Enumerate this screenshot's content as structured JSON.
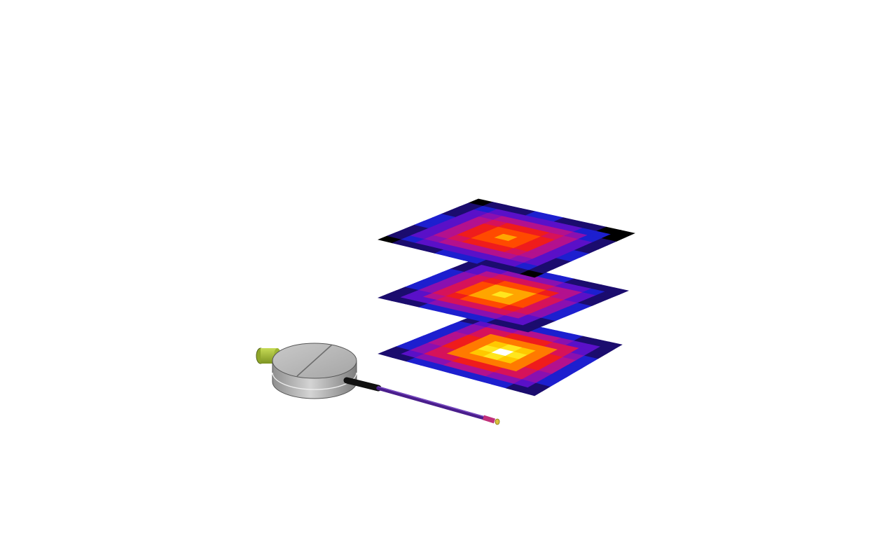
{
  "colormap": [
    "#000000",
    "#1b0c6e",
    "#1d1fcf",
    "#5a10c8",
    "#8a10b0",
    "#b3118e",
    "#d6125a",
    "#ef1c1c",
    "#ff4a00",
    "#ff7a00",
    "#ffa500",
    "#ffc800",
    "#ffe61e",
    "#fff36a",
    "#ffffff"
  ],
  "heatmap_layers": [
    {
      "id": "layer-top",
      "peak": 0.72,
      "floor": 0.0
    },
    {
      "id": "layer-middle",
      "peak": 0.86,
      "floor": 0.12
    },
    {
      "id": "layer-bottom",
      "peak": 1.0,
      "floor": 0.2
    }
  ],
  "grid_resolution": 11,
  "probe": {
    "body_color": "#b8b8b8",
    "connector_color": "#a9c23a",
    "cable_color": "#5b2aa0",
    "tip_color": "#c0307a"
  }
}
